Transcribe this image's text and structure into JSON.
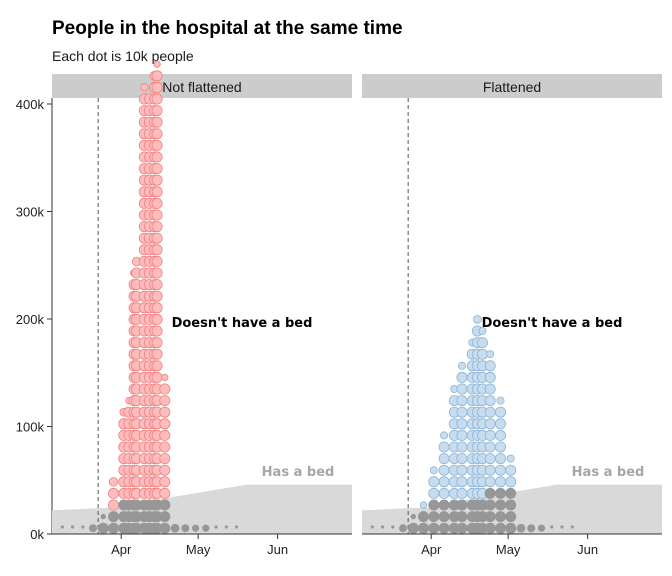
{
  "chart_data": {
    "type": "scatter",
    "title": "People in the hospital at the same time",
    "subtitle": "Each dot is 10k people",
    "y_ticks": [
      {
        "value": 0,
        "label": "0k"
      },
      {
        "value": 100000,
        "label": "100k"
      },
      {
        "value": 200000,
        "label": "200k"
      },
      {
        "value": 300000,
        "label": "300k"
      },
      {
        "value": 400000,
        "label": "400k"
      }
    ],
    "ylim": [
      0,
      400000
    ],
    "x_ticks": [
      {
        "value": "2020-04-01",
        "label": "Apr"
      },
      {
        "value": "2020-05-01",
        "label": "May"
      },
      {
        "value": "2020-06-01",
        "label": "Jun"
      }
    ],
    "xlim": [
      "2020-03-05",
      "2020-06-30"
    ],
    "dashed_line_date": "2020-03-23",
    "capacity": {
      "dates": [
        "2020-03-05",
        "2020-04-01",
        "2020-04-15",
        "2020-05-05",
        "2020-05-20",
        "2020-06-30"
      ],
      "values": [
        22000,
        25000,
        32000,
        40000,
        46000,
        46000
      ]
    },
    "colors": {
      "no_bed_fill": "#ffbcbc",
      "no_bed_stroke": "#f08080",
      "flat_fill": "#c6dcef",
      "flat_stroke": "#8fb4d6",
      "has_bed_dot": "#979797",
      "capacity_area": "#d9d9d9",
      "strip_bg": "#cccccc"
    },
    "panels": [
      {
        "label": "Not flattened",
        "annotation_no_bed": "Doesn't have a bed",
        "annotation_no_bed_pos": {
          "date": "2020-04-22",
          "value": 196000
        },
        "annotation_has_bed": "Has a bed",
        "annotation_has_bed_pos": {
          "date": "2020-06-10",
          "value": 57000
        },
        "series": [
          {
            "date": "2020-03-21",
            "value": 5000
          },
          {
            "date": "2020-03-25",
            "value": 12000
          },
          {
            "date": "2020-03-29",
            "value": 47000
          },
          {
            "date": "2020-04-02",
            "value": 106000
          },
          {
            "date": "2020-04-04",
            "value": 114000
          },
          {
            "date": "2020-04-06",
            "value": 225000
          },
          {
            "date": "2020-04-07",
            "value": 237000
          },
          {
            "date": "2020-04-10",
            "value": 385000
          },
          {
            "date": "2020-04-12",
            "value": 380000
          },
          {
            "date": "2020-04-14",
            "value": 398000
          },
          {
            "date": "2020-04-15",
            "value": 404000
          },
          {
            "date": "2020-04-18",
            "value": 134000
          },
          {
            "date": "2020-04-22",
            "value": 6000
          },
          {
            "date": "2020-04-26",
            "value": 5000
          },
          {
            "date": "2020-04-30",
            "value": 4000
          },
          {
            "date": "2020-05-04",
            "value": 4000
          }
        ]
      },
      {
        "label": "Flattened",
        "annotation_no_bed": "Doesn't have a bed",
        "annotation_no_bed_pos": {
          "date": "2020-04-22",
          "value": 196000
        },
        "annotation_has_bed": "Has a bed",
        "annotation_has_bed_pos": {
          "date": "2020-06-10",
          "value": 57000
        },
        "series": [
          {
            "date": "2020-03-21",
            "value": 5000
          },
          {
            "date": "2020-03-25",
            "value": 12000
          },
          {
            "date": "2020-03-29",
            "value": 24000
          },
          {
            "date": "2020-04-02",
            "value": 55000
          },
          {
            "date": "2020-04-06",
            "value": 85000
          },
          {
            "date": "2020-04-10",
            "value": 125000
          },
          {
            "date": "2020-04-13",
            "value": 145000
          },
          {
            "date": "2020-04-17",
            "value": 165000
          },
          {
            "date": "2020-04-19",
            "value": 186000
          },
          {
            "date": "2020-04-21",
            "value": 175000
          },
          {
            "date": "2020-04-24",
            "value": 155000
          },
          {
            "date": "2020-04-28",
            "value": 115000
          },
          {
            "date": "2020-05-02",
            "value": 65000
          },
          {
            "date": "2020-05-06",
            "value": 6000
          },
          {
            "date": "2020-05-10",
            "value": 5000
          },
          {
            "date": "2020-05-14",
            "value": 4000
          }
        ]
      }
    ]
  }
}
